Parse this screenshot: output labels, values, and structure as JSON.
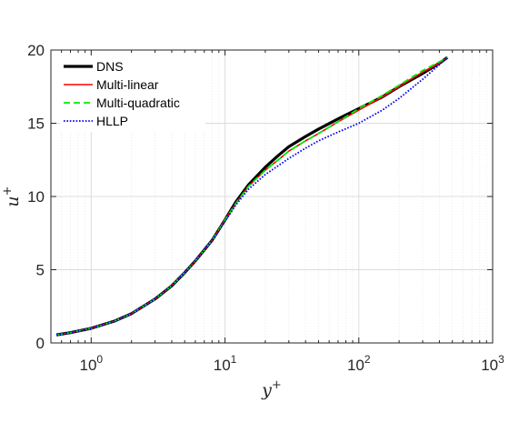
{
  "chart_data": {
    "type": "line",
    "xscale": "log",
    "xlim": [
      0.5,
      1000
    ],
    "ylim": [
      0,
      20
    ],
    "xticks": [
      1,
      10,
      100,
      1000
    ],
    "xtick_labels": [
      {
        "base": "10",
        "exp": "0"
      },
      {
        "base": "10",
        "exp": "1"
      },
      {
        "base": "10",
        "exp": "2"
      },
      {
        "base": "10",
        "exp": "3"
      }
    ],
    "yticks": [
      0,
      5,
      10,
      15,
      20
    ],
    "xlabel": {
      "main": "y",
      "sup": "+"
    },
    "ylabel": {
      "main": "u",
      "sup": "+"
    },
    "grid": true,
    "minor_grid": true,
    "legend_position": "top-left",
    "series": [
      {
        "name": "DNS",
        "color": "#000000",
        "dash": "solid",
        "x": [
          0.55,
          0.7,
          1,
          1.5,
          2,
          3,
          4,
          5,
          6,
          8,
          10,
          12,
          15,
          20,
          25,
          30,
          40,
          50,
          70,
          100,
          150,
          200,
          300,
          400,
          460
        ],
        "y": [
          0.55,
          0.7,
          1.0,
          1.5,
          2.0,
          3.0,
          3.9,
          4.8,
          5.6,
          7.0,
          8.4,
          9.6,
          10.8,
          12.0,
          12.8,
          13.4,
          14.1,
          14.6,
          15.3,
          16.0,
          16.8,
          17.5,
          18.4,
          19.1,
          19.5
        ]
      },
      {
        "name": "Multi-linear",
        "color": "#ff0000",
        "dash": "solid",
        "x": [
          0.55,
          0.7,
          1,
          1.5,
          2,
          3,
          4,
          5,
          6,
          8,
          10,
          12,
          15,
          20,
          25,
          30,
          40,
          50,
          70,
          100,
          150,
          200,
          300,
          400,
          460
        ],
        "y": [
          0.55,
          0.7,
          1.0,
          1.5,
          2.0,
          3.0,
          3.9,
          4.8,
          5.6,
          7.0,
          8.4,
          9.5,
          10.7,
          11.8,
          12.5,
          13.1,
          13.8,
          14.3,
          15.1,
          15.9,
          16.8,
          17.5,
          18.5,
          19.1,
          19.5
        ]
      },
      {
        "name": "Multi-quadratic",
        "color": "#00ee00",
        "dash": "dashed",
        "x": [
          0.55,
          0.7,
          1,
          1.5,
          2,
          3,
          4,
          5,
          6,
          8,
          10,
          12,
          15,
          20,
          25,
          30,
          40,
          50,
          70,
          100,
          150,
          200,
          300,
          400,
          460
        ],
        "y": [
          0.55,
          0.7,
          1.0,
          1.5,
          2.0,
          3.0,
          3.9,
          4.8,
          5.6,
          7.0,
          8.4,
          9.5,
          10.7,
          11.8,
          12.5,
          13.1,
          13.8,
          14.3,
          15.1,
          16.0,
          16.9,
          17.6,
          18.6,
          19.2,
          19.5
        ]
      },
      {
        "name": "HLLP",
        "color": "#0000ee",
        "dash": "dotted",
        "x": [
          0.55,
          0.7,
          1,
          1.5,
          2,
          3,
          4,
          5,
          6,
          8,
          10,
          12,
          15,
          20,
          25,
          30,
          40,
          50,
          70,
          100,
          150,
          200,
          300,
          400,
          460
        ],
        "y": [
          0.55,
          0.7,
          1.0,
          1.5,
          2.0,
          3.0,
          3.9,
          4.8,
          5.6,
          7.0,
          8.3,
          9.4,
          10.5,
          11.5,
          12.1,
          12.6,
          13.3,
          13.8,
          14.4,
          15.0,
          15.9,
          16.7,
          18.0,
          19.0,
          19.5
        ]
      }
    ]
  }
}
